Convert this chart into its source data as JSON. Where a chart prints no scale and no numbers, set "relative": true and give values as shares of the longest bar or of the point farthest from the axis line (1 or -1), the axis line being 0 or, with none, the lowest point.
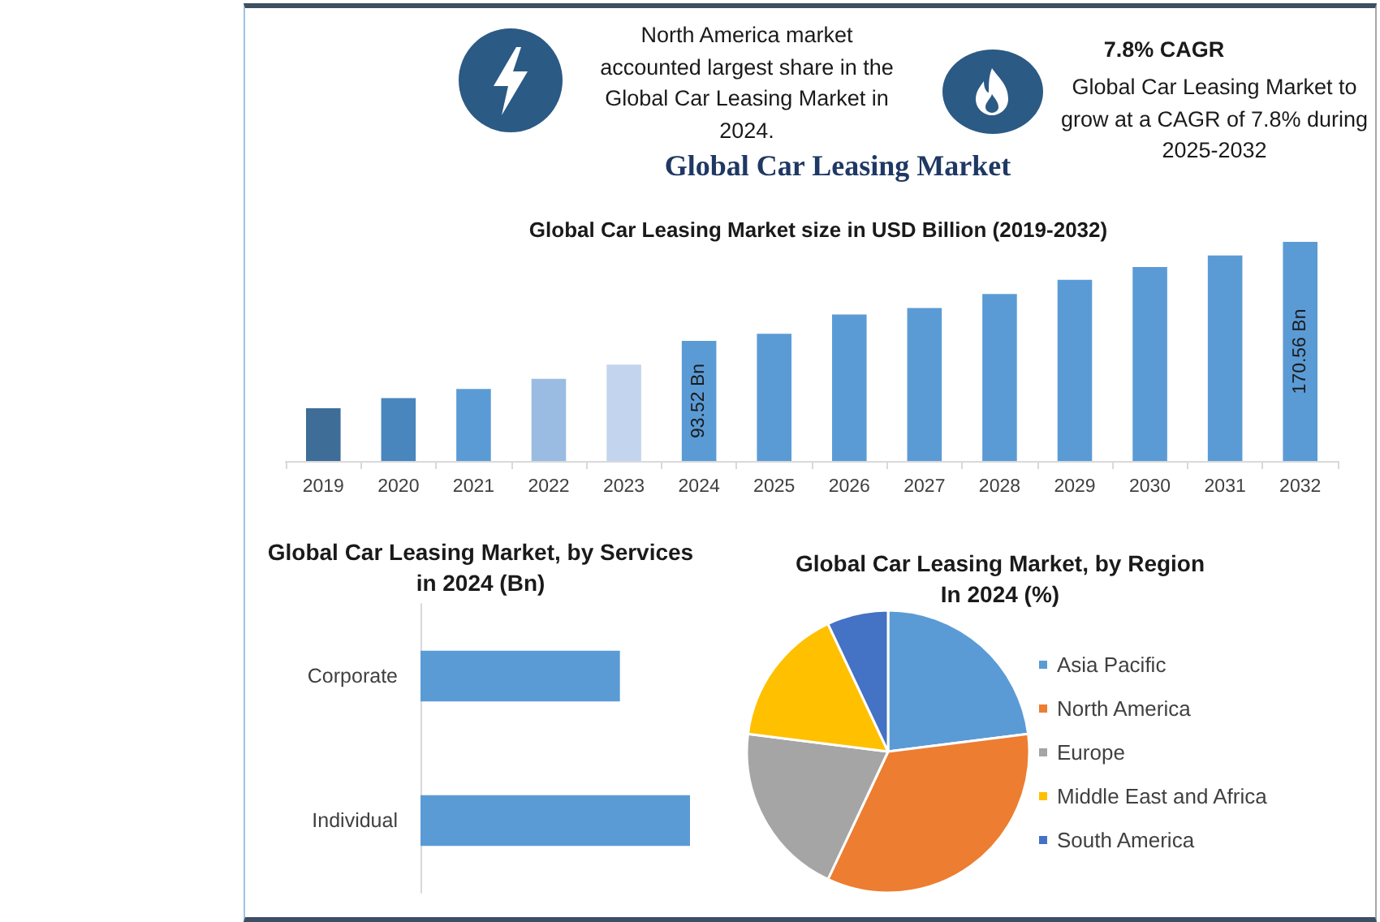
{
  "chart_data": [
    {
      "type": "other",
      "title": "Global Car Leasing Market",
      "annotations": [
        "North America market accounted largest share in the Global Car Leasing Market in 2024.",
        "7.8% CAGR",
        "Global Car Leasing Market to grow at a CAGR of 7.8% during 2025-2032"
      ]
    },
    {
      "type": "bar",
      "title": "Global Car Leasing Market size in USD Billion (2019-2032)",
      "categories": [
        "2019",
        "2020",
        "2021",
        "2022",
        "2023",
        "2024",
        "2025",
        "2026",
        "2027",
        "2028",
        "2029",
        "2030",
        "2031",
        "2032"
      ],
      "values": [
        41,
        49,
        56,
        64,
        75,
        93.52,
        99,
        114,
        119,
        130,
        141,
        151,
        160,
        170.56
      ],
      "colors": [
        "#3e6d98",
        "#4a86be",
        "#5b9bd5",
        "#9abce3",
        "#c3d5ee",
        "#5b9bd5",
        "#5b9bd5",
        "#5b9bd5",
        "#5b9bd5",
        "#5b9bd5",
        "#5b9bd5",
        "#5b9bd5",
        "#5b9bd5",
        "#5b9bd5"
      ],
      "value_labels": [
        null,
        null,
        null,
        null,
        null,
        "93.52 Bn",
        null,
        null,
        null,
        null,
        null,
        null,
        null,
        "170.56 Bn"
      ],
      "tick_labels": "x"
    },
    {
      "type": "bar",
      "title": "Global Car Leasing Market, by Services in 2024 (Bn)",
      "orientation": "horizontal",
      "categories": [
        "Corporate",
        "Individual"
      ],
      "values": [
        0.74,
        1
      ],
      "color": "#5b9bd5",
      "relative": true
    },
    {
      "type": "pie",
      "title": "Global Car Leasing Market, by Region In 2024 (%)",
      "categories": [
        "Asia Pacific",
        "North America",
        "Europe",
        "Middle East and Africa",
        "South America"
      ],
      "values": [
        23,
        34,
        20,
        16,
        7
      ],
      "colors": [
        "#5b9bd5",
        "#ed7d31",
        "#a5a5a5",
        "#ffc000",
        "#4472c4"
      ],
      "legend": "right"
    }
  ]
}
